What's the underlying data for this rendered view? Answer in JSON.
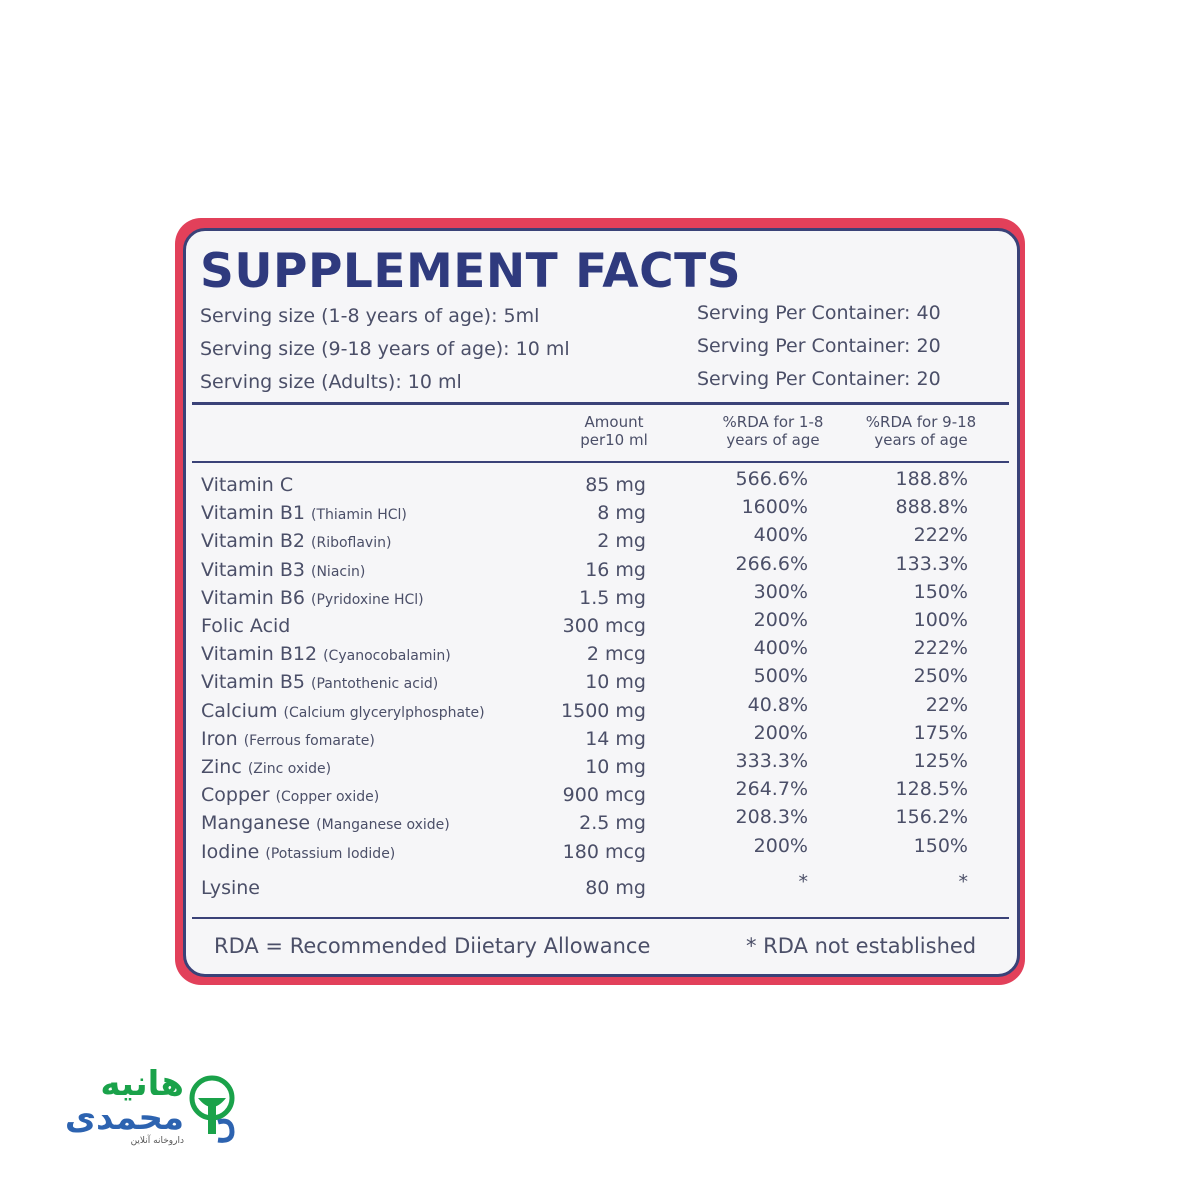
{
  "label": {
    "title": "SUPPLEMENT FACTS",
    "serving": [
      {
        "size": "Serving size (1-8 years of age): 5ml",
        "per_container": "Serving Per Container: 40"
      },
      {
        "size": "Serving size (9-18 years of age): 10 ml",
        "per_container": "Serving Per Container: 20"
      },
      {
        "size": "Serving size (Adults): 10 ml",
        "per_container": "Serving Per Container: 20"
      }
    ],
    "columns": [
      [
        "Amount",
        "per10 ml"
      ],
      [
        "%RDA for 1-8",
        "years of age"
      ],
      [
        "%RDA for 9-18",
        "years of age"
      ]
    ],
    "rows": [
      {
        "name": "Vitamin C",
        "detail": "",
        "amount": "85 mg",
        "rda_1_8": "566.6%",
        "rda_9_18": "188.8%"
      },
      {
        "name": "Vitamin B1",
        "detail": "(Thiamin HCl)",
        "amount": "8 mg",
        "rda_1_8": "1600%",
        "rda_9_18": "888.8%"
      },
      {
        "name": "Vitamin B2",
        "detail": "(Riboflavin)",
        "amount": "2 mg",
        "rda_1_8": "400%",
        "rda_9_18": "222%"
      },
      {
        "name": "Vitamin B3",
        "detail": "(Niacin)",
        "amount": "16 mg",
        "rda_1_8": "266.6%",
        "rda_9_18": "133.3%"
      },
      {
        "name": "Vitamin B6",
        "detail": "(Pyridoxine HCl)",
        "amount": "1.5 mg",
        "rda_1_8": "300%",
        "rda_9_18": "150%"
      },
      {
        "name": "Folic Acid",
        "detail": "",
        "amount": "300 mcg",
        "rda_1_8": "200%",
        "rda_9_18": "100%"
      },
      {
        "name": "Vitamin B12",
        "detail": "(Cyanocobalamin)",
        "amount": "2 mcg",
        "rda_1_8": "400%",
        "rda_9_18": "222%"
      },
      {
        "name": "Vitamin B5",
        "detail": "(Pantothenic acid)",
        "amount": "10 mg",
        "rda_1_8": "500%",
        "rda_9_18": "250%"
      },
      {
        "name": "Calcium",
        "detail": "(Calcium glycerylphosphate)",
        "amount": "1500 mg",
        "rda_1_8": "40.8%",
        "rda_9_18": "22%"
      },
      {
        "name": "Iron",
        "detail": "(Ferrous fomarate)",
        "amount": "14 mg",
        "rda_1_8": "200%",
        "rda_9_18": "175%"
      },
      {
        "name": "Zinc",
        "detail": "(Zinc oxide)",
        "amount": "10 mg",
        "rda_1_8": "333.3%",
        "rda_9_18": "125%"
      },
      {
        "name": "Copper",
        "detail": "(Copper oxide)",
        "amount": "900 mcg",
        "rda_1_8": "264.7%",
        "rda_9_18": "128.5%"
      },
      {
        "name": "Manganese",
        "detail": "(Manganese oxide)",
        "amount": "2.5 mg",
        "rda_1_8": "208.3%",
        "rda_9_18": "156.2%"
      },
      {
        "name": "Iodine",
        "detail": "(Potassium Iodide)",
        "amount": "180 mcg",
        "rda_1_8": "200%",
        "rda_9_18": "150%"
      },
      {
        "name": "Lysine",
        "detail": "",
        "amount": "80 mg",
        "rda_1_8": "*",
        "rda_9_18": "*"
      }
    ],
    "footer_left": "RDA = Recommended Diietary Allowance",
    "footer_right": "* RDA not established"
  },
  "logo": {
    "line1": "هانیه",
    "line2": "محمدی",
    "tagline": "داروخانه آنلاین"
  }
}
